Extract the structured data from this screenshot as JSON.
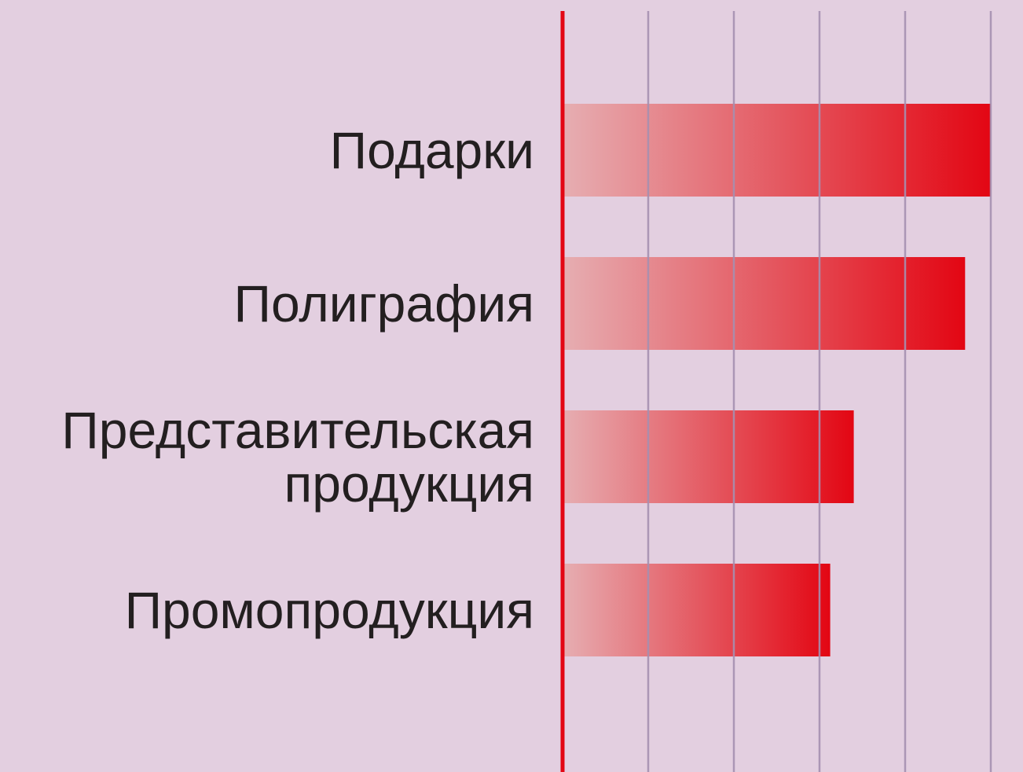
{
  "chart_data": {
    "type": "bar",
    "orientation": "horizontal",
    "title": "",
    "xlabel": "",
    "ylabel": "",
    "categories": [
      [
        "Подарки"
      ],
      [
        "Полиграфия"
      ],
      [
        "Представительская",
        "продукция"
      ],
      [
        "Промопродукция"
      ]
    ],
    "values": [
      100,
      94,
      68,
      62.5
    ],
    "xlim": [
      0,
      100
    ],
    "gridlines": [
      0,
      20,
      40,
      60,
      80,
      100
    ],
    "grid": true,
    "tick_labels_shown": false,
    "legend": "none",
    "colors": {
      "background": "#e3cfe0",
      "bar_start": "#e6aeb2",
      "bar_end": "#e30613",
      "axis": "#e30613",
      "grid": "#a48fb0",
      "label": "#231f20"
    }
  }
}
